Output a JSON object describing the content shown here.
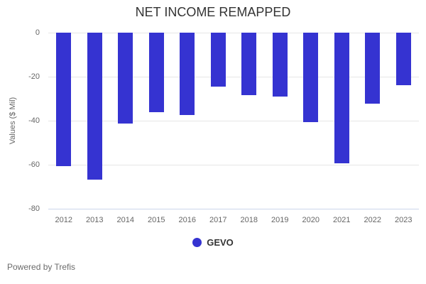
{
  "chart_data": {
    "type": "bar",
    "title": "NET INCOME REMAPPED",
    "xlabel": "",
    "ylabel": "Values ($ Mil)",
    "categories": [
      "2012",
      "2013",
      "2014",
      "2015",
      "2016",
      "2017",
      "2018",
      "2019",
      "2020",
      "2021",
      "2022",
      "2023"
    ],
    "series": [
      {
        "name": "GEVO",
        "color": "#3533d1",
        "values": [
          -60.8,
          -66.9,
          -41.2,
          -36.2,
          -37.4,
          -24.6,
          -28.3,
          -29.0,
          -40.5,
          -59.4,
          -32.2,
          -24.0
        ]
      }
    ],
    "ylim": [
      -80,
      0
    ],
    "yticks": [
      0,
      -20,
      -40,
      -60,
      -80
    ],
    "grid": true,
    "legend_position": "bottom"
  },
  "colors": {
    "bar_accent": "#3533d1",
    "gridline": "#e6e6e6",
    "axis_line": "#ccd6eb",
    "tick_text": "#666666",
    "title_text": "#333333",
    "background": "#ffffff"
  },
  "footer": {
    "text": "Powered by Trefis"
  }
}
